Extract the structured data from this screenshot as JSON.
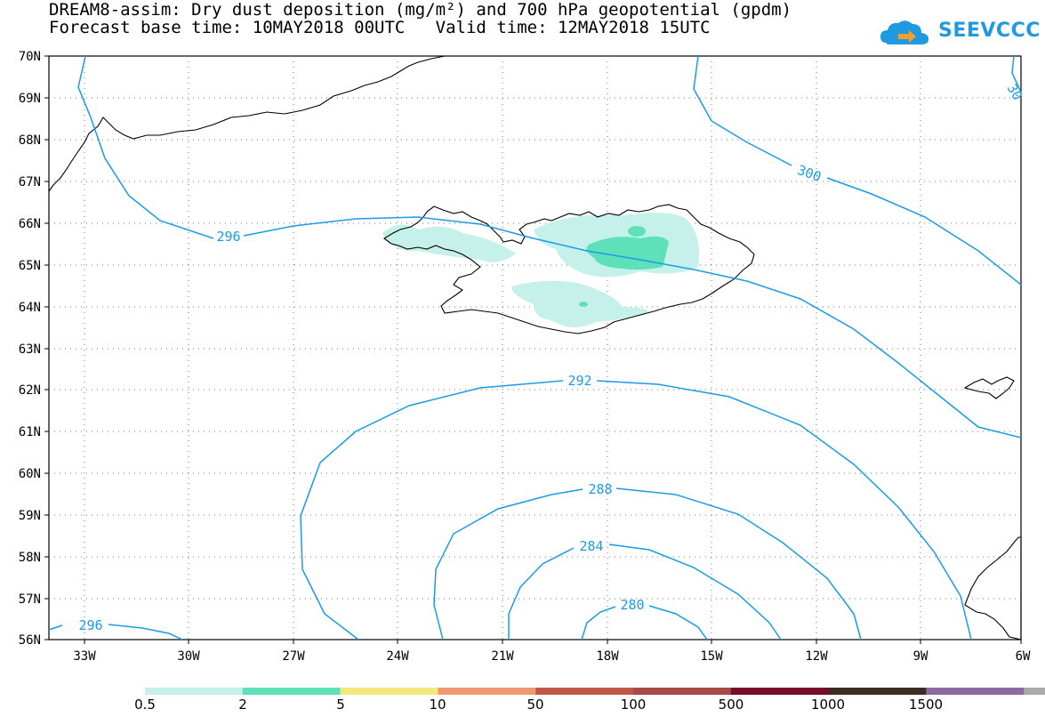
{
  "header": {
    "title_line1": "DREAM8-assim: Dry dust deposition (mg/m²) and 700 hPa geopotential (gpdm)",
    "title_line2": "Forecast base time: 10MAY2018 00UTC   Valid time: 12MAY2018 15UTC",
    "logo_text": "SEEVCCC",
    "logo_icon": "cloud-arrow-icon"
  },
  "map": {
    "lat_labels": [
      "70N",
      "69N",
      "68N",
      "67N",
      "66N",
      "65N",
      "64N",
      "63N",
      "62N",
      "61N",
      "60N",
      "59N",
      "58N",
      "57N",
      "56N"
    ],
    "lon_labels": [
      "33W",
      "30W",
      "27W",
      "24W",
      "21W",
      "18W",
      "15W",
      "12W",
      "9W",
      "6W"
    ],
    "contour_labels": [
      "296",
      "300",
      "30",
      "292",
      "288",
      "284",
      "280",
      "296"
    ],
    "contour_color": "#1a9be6",
    "land_outline_color": "#000000"
  },
  "colorbar": {
    "colors": [
      "#c6f1eb",
      "#5ee0b8",
      "#f5e87a",
      "#ef9a72",
      "#c0584a",
      "#a84a48",
      "#7a0d25",
      "#3f2c20",
      "#8e6aa0",
      "#aaaaaa"
    ],
    "labels": [
      "0.5",
      "2",
      "5",
      "10",
      "50",
      "100",
      "500",
      "1000",
      "1500"
    ]
  }
}
